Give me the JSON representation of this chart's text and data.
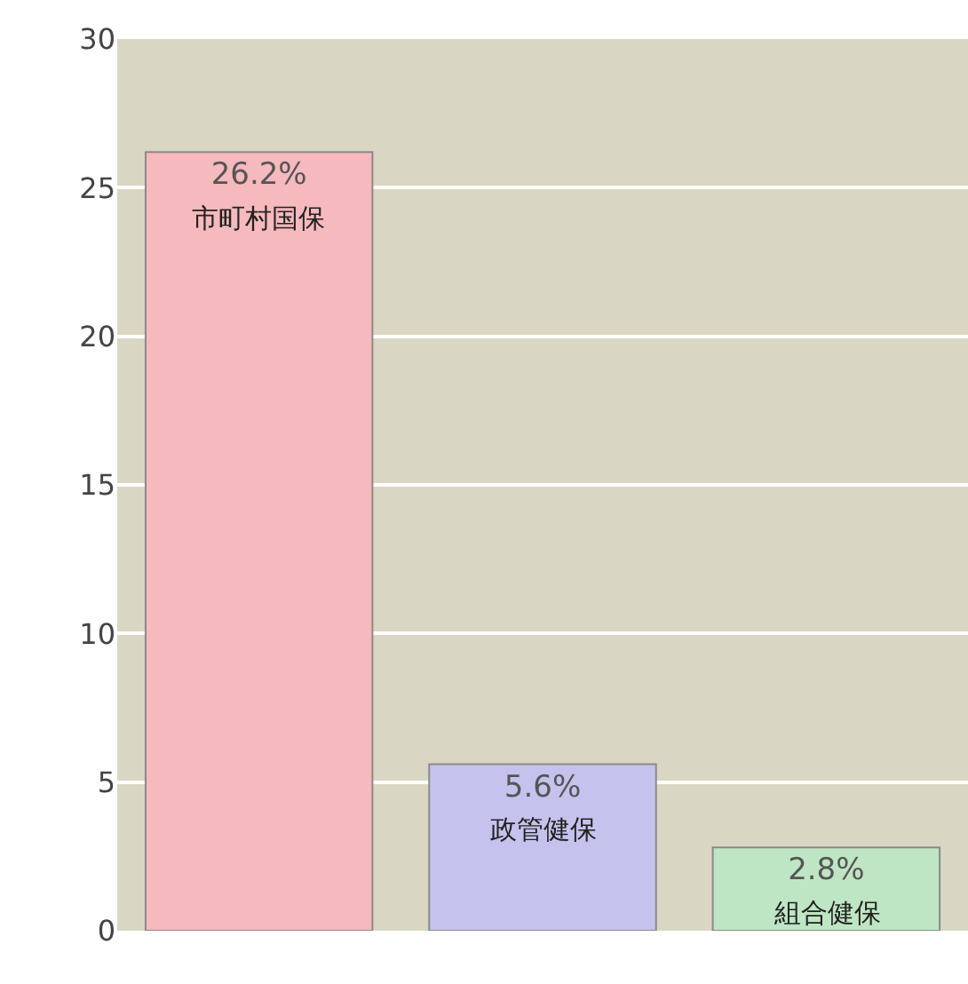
{
  "chart_data": {
    "type": "bar",
    "categories": [
      "市町村国保",
      "政管健保",
      "組合健保"
    ],
    "values": [
      26.2,
      5.6,
      2.8
    ],
    "colors": [
      "#f6b9bd",
      "#c6c2ee",
      "#bfe6c4"
    ],
    "value_labels": [
      "26.2%",
      "5.6%",
      "2.8%"
    ],
    "ylim": [
      0,
      30
    ],
    "yticks": [
      0,
      5,
      10,
      15,
      20,
      25,
      30
    ],
    "grid": "y",
    "tick_labels": "y"
  }
}
